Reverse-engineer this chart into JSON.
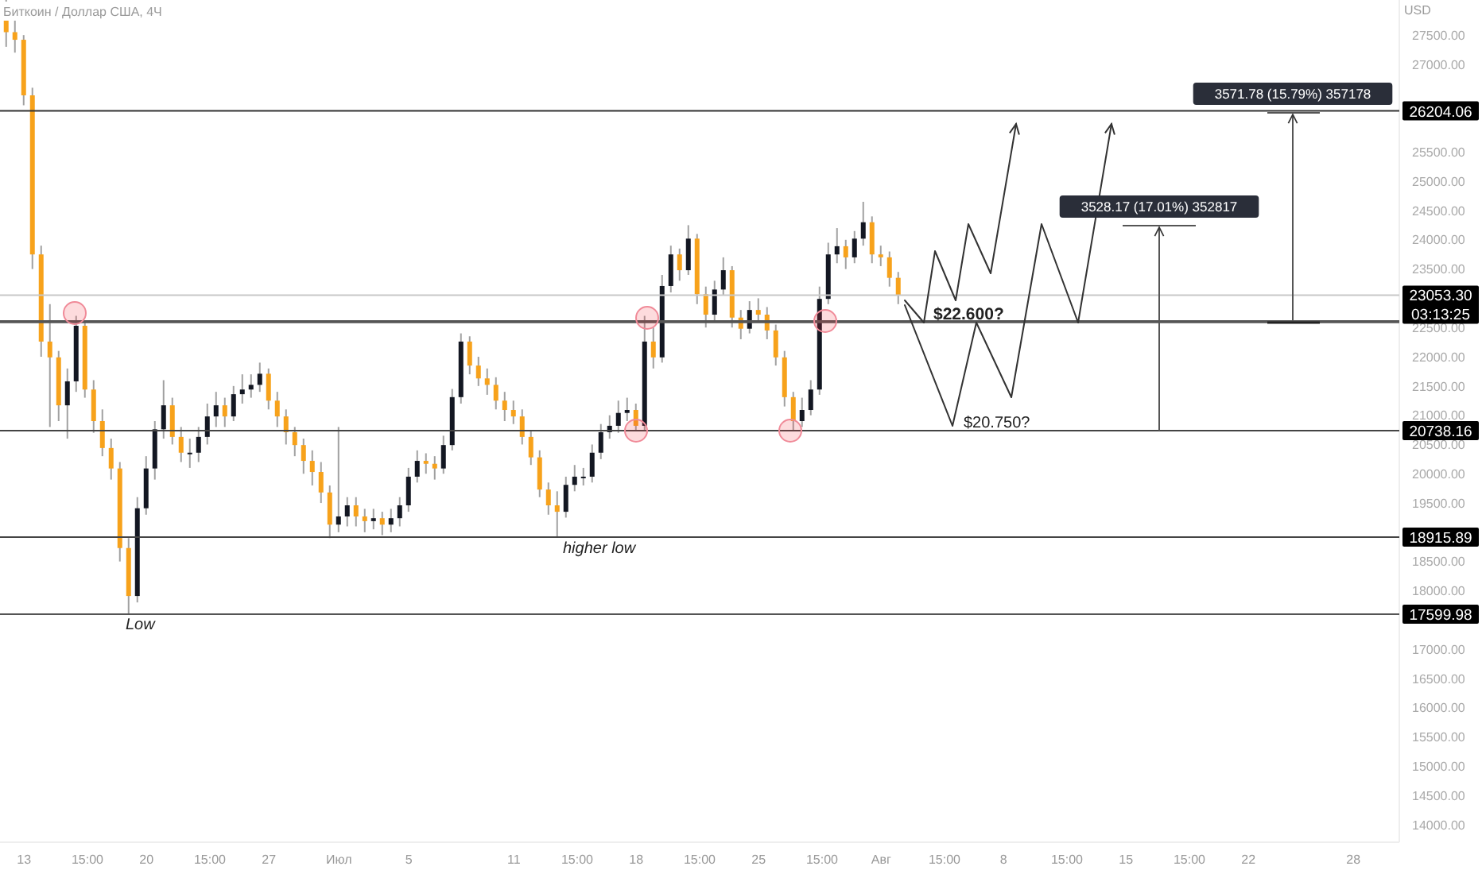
{
  "chart_data": {
    "type": "candlestick",
    "title": "Биткоин / Доллар США, 4Ч",
    "ylabel": "USD",
    "x": [
      "--06-12T00:00",
      "--06-12T12:00",
      "--06-13T00:00",
      "--06-13T12:00",
      "--06-14T00:00",
      "--06-14T12:00",
      "--06-15T00:00",
      "--06-15T12:00",
      "--06-16T00:00",
      "--06-16T12:00",
      "--06-17T00:00",
      "--06-17T12:00",
      "--06-18T00:00",
      "--06-18T12:00",
      "--06-19T00:00",
      "--06-19T12:00",
      "--06-20T00:00",
      "--06-20T12:00",
      "--06-21T00:00",
      "--06-21T12:00",
      "--06-22T00:00",
      "--06-22T12:00",
      "--06-23T00:00",
      "--06-23T12:00",
      "--06-24T00:00",
      "--06-24T12:00",
      "--06-25T00:00",
      "--06-25T12:00",
      "--06-26T00:00",
      "--06-26T12:00",
      "--06-27T00:00",
      "--06-27T12:00",
      "--06-28T00:00",
      "--06-28T12:00",
      "--06-29T00:00",
      "--06-29T12:00",
      "--06-30T00:00",
      "--06-30T12:00",
      "--07-01T00:00",
      "--07-01T12:00",
      "--07-02T00:00",
      "--07-02T12:00",
      "--07-03T00:00",
      "--07-03T12:00",
      "--07-04T00:00",
      "--07-04T12:00",
      "--07-05T00:00",
      "--07-05T12:00",
      "--07-06T00:00",
      "--07-06T12:00",
      "--07-07T00:00",
      "--07-07T12:00",
      "--07-08T00:00",
      "--07-08T12:00",
      "--07-09T00:00",
      "--07-09T12:00",
      "--07-10T00:00",
      "--07-10T12:00",
      "--07-11T00:00",
      "--07-11T12:00",
      "--07-12T00:00",
      "--07-12T12:00",
      "--07-13T00:00",
      "--07-13T12:00",
      "--07-14T00:00",
      "--07-14T12:00",
      "--07-15T00:00",
      "--07-15T12:00",
      "--07-16T00:00",
      "--07-16T12:00",
      "--07-17T00:00",
      "--07-17T12:00",
      "--07-18T00:00",
      "--07-18T12:00",
      "--07-19T00:00",
      "--07-19T12:00",
      "--07-20T00:00",
      "--07-20T12:00",
      "--07-21T00:00",
      "--07-21T12:00",
      "--07-22T00:00",
      "--07-22T12:00",
      "--07-23T00:00",
      "--07-23T12:00",
      "--07-24T00:00",
      "--07-24T12:00",
      "--07-25T00:00",
      "--07-25T12:00",
      "--07-26T00:00",
      "--07-26T12:00",
      "--07-27T00:00",
      "--07-27T12:00",
      "--07-28T00:00",
      "--07-28T12:00",
      "--07-29T00:00",
      "--07-29T12:00",
      "--07-30T00:00",
      "--07-30T12:00",
      "--07-31T00:00",
      "--07-31T12:00",
      "--08-01T00:00",
      "--08-01T12:00",
      "--08-02T00:00"
    ],
    "ohlc": [
      [
        27800,
        28100,
        27300,
        27550
      ],
      [
        27550,
        27800,
        27200,
        27420
      ],
      [
        27420,
        27500,
        26300,
        26470
      ],
      [
        26470,
        26600,
        23500,
        23750
      ],
      [
        23750,
        23900,
        22000,
        22260
      ],
      [
        22260,
        22900,
        20800,
        21990
      ],
      [
        21990,
        22100,
        20900,
        21170
      ],
      [
        21170,
        21800,
        20600,
        21580
      ],
      [
        21580,
        22700,
        21400,
        22530
      ],
      [
        22530,
        22600,
        21300,
        21440
      ],
      [
        21440,
        21600,
        20700,
        20900
      ],
      [
        20900,
        21100,
        20300,
        20440
      ],
      [
        20440,
        20600,
        19900,
        20090
      ],
      [
        20090,
        20200,
        18500,
        18730
      ],
      [
        18730,
        18900,
        17600,
        17910
      ],
      [
        17910,
        19600,
        17800,
        19410
      ],
      [
        19410,
        20300,
        19300,
        20090
      ],
      [
        20090,
        20900,
        19900,
        20760
      ],
      [
        20760,
        21600,
        20600,
        21170
      ],
      [
        21170,
        21300,
        20500,
        20630
      ],
      [
        20630,
        20800,
        20200,
        20360
      ],
      [
        20360,
        20600,
        20100,
        20360
      ],
      [
        20360,
        20800,
        20200,
        20630
      ],
      [
        20630,
        21200,
        20500,
        20980
      ],
      [
        20980,
        21400,
        20800,
        21170
      ],
      [
        21170,
        21300,
        20800,
        20980
      ],
      [
        20980,
        21500,
        20900,
        21360
      ],
      [
        21360,
        21700,
        21200,
        21440
      ],
      [
        21440,
        21700,
        21300,
        21520
      ],
      [
        21520,
        21900,
        21400,
        21710
      ],
      [
        21710,
        21800,
        21100,
        21250
      ],
      [
        21250,
        21400,
        20800,
        20980
      ],
      [
        20980,
        21100,
        20500,
        20710
      ],
      [
        20710,
        20800,
        20300,
        20490
      ],
      [
        20490,
        20600,
        20000,
        20220
      ],
      [
        20220,
        20400,
        19800,
        20030
      ],
      [
        20030,
        20200,
        19500,
        19680
      ],
      [
        19680,
        19800,
        18900,
        19130
      ],
      [
        19130,
        20800,
        19000,
        19270
      ],
      [
        19270,
        19600,
        19100,
        19460
      ],
      [
        19460,
        19600,
        19100,
        19270
      ],
      [
        19270,
        19400,
        19000,
        19190
      ],
      [
        19190,
        19400,
        19050,
        19240
      ],
      [
        19240,
        19350,
        18950,
        19130
      ],
      [
        19130,
        19400,
        19000,
        19240
      ],
      [
        19240,
        19600,
        19100,
        19460
      ],
      [
        19460,
        20100,
        19350,
        19950
      ],
      [
        19950,
        20400,
        19850,
        20220
      ],
      [
        20220,
        20350,
        20000,
        20170
      ],
      [
        20170,
        20300,
        19900,
        20090
      ],
      [
        20090,
        20650,
        20000,
        20490
      ],
      [
        20490,
        21450,
        20400,
        21310
      ],
      [
        21310,
        22400,
        21200,
        22260
      ],
      [
        22260,
        22350,
        21700,
        21850
      ],
      [
        21850,
        22000,
        21500,
        21630
      ],
      [
        21630,
        21800,
        21350,
        21520
      ],
      [
        21520,
        21650,
        21100,
        21250
      ],
      [
        21250,
        21400,
        20900,
        21090
      ],
      [
        21090,
        21250,
        20850,
        20980
      ],
      [
        20980,
        21100,
        20500,
        20630
      ],
      [
        20630,
        20750,
        20150,
        20280
      ],
      [
        20280,
        20400,
        19600,
        19730
      ],
      [
        19730,
        19850,
        19300,
        19460
      ],
      [
        19460,
        19700,
        18920,
        19350
      ],
      [
        19350,
        19950,
        19250,
        19810
      ],
      [
        19810,
        20150,
        19700,
        19950
      ],
      [
        19950,
        20100,
        19800,
        19950
      ],
      [
        19950,
        20500,
        19850,
        20360
      ],
      [
        20360,
        20850,
        20250,
        20710
      ],
      [
        20710,
        21000,
        20600,
        20820
      ],
      [
        20820,
        21250,
        20700,
        21040
      ],
      [
        21040,
        21300,
        20900,
        21090
      ],
      [
        21090,
        21200,
        20740,
        20820
      ],
      [
        20820,
        22700,
        20750,
        22260
      ],
      [
        22260,
        22500,
        21800,
        21990
      ],
      [
        21990,
        23400,
        21900,
        23210
      ],
      [
        23210,
        23900,
        23100,
        23750
      ],
      [
        23750,
        23850,
        23300,
        23480
      ],
      [
        23480,
        24250,
        23400,
        24020
      ],
      [
        24020,
        24100,
        22900,
        23070
      ],
      [
        23070,
        23200,
        22500,
        22720
      ],
      [
        22720,
        23300,
        22600,
        23150
      ],
      [
        23150,
        23700,
        23050,
        23480
      ],
      [
        23480,
        23550,
        22500,
        22670
      ],
      [
        22670,
        22800,
        22300,
        22480
      ],
      [
        22480,
        22950,
        22400,
        22800
      ],
      [
        22800,
        23000,
        22600,
        22720
      ],
      [
        22720,
        22850,
        22300,
        22450
      ],
      [
        22450,
        22550,
        21850,
        21990
      ],
      [
        21990,
        22100,
        21150,
        21310
      ],
      [
        21310,
        21400,
        20740,
        20900
      ],
      [
        20900,
        21300,
        20800,
        21090
      ],
      [
        21090,
        21600,
        21000,
        21440
      ],
      [
        21440,
        23200,
        21350,
        22990
      ],
      [
        22990,
        23950,
        22900,
        23750
      ],
      [
        23750,
        24200,
        23600,
        23890
      ],
      [
        23890,
        24000,
        23500,
        23700
      ],
      [
        23700,
        24150,
        23600,
        24020
      ],
      [
        24020,
        24650,
        23900,
        24300
      ],
      [
        24300,
        24400,
        23600,
        23750
      ],
      [
        23750,
        23900,
        23550,
        23700
      ],
      [
        23700,
        23800,
        23200,
        23350
      ],
      [
        23350,
        23450,
        22900,
        23053.3
      ]
    ],
    "xlim": [
      "--06-11T15:00",
      "--08-30T15:00"
    ],
    "xticks": [
      {
        "value": "--06-13",
        "label": "13"
      },
      {
        "value": "--06-16T15:00",
        "label": "15:00"
      },
      {
        "value": "--06-20",
        "label": "20"
      },
      {
        "value": "--06-23T15:00",
        "label": "15:00"
      },
      {
        "value": "--06-27",
        "label": "27"
      },
      {
        "value": "--07-01",
        "label": "Июл"
      },
      {
        "value": "--07-05",
        "label": "5"
      },
      {
        "value": "--07-11",
        "label": "11"
      },
      {
        "value": "--07-14T15:00",
        "label": "15:00"
      },
      {
        "value": "--07-18",
        "label": "18"
      },
      {
        "value": "--07-21T15:00",
        "label": "15:00"
      },
      {
        "value": "--07-25",
        "label": "25"
      },
      {
        "value": "--07-28T15:00",
        "label": "15:00"
      },
      {
        "value": "--08-01",
        "label": "Авг"
      },
      {
        "value": "--08-04T15:00",
        "label": "15:00"
      },
      {
        "value": "--08-08",
        "label": "8"
      },
      {
        "value": "--08-11T15:00",
        "label": "15:00"
      },
      {
        "value": "--08-15",
        "label": "15"
      },
      {
        "value": "--08-18T15:00",
        "label": "15:00"
      },
      {
        "value": "--08-22",
        "label": "22"
      },
      {
        "value": "--08-28",
        "label": "28"
      }
    ],
    "ylim": [
      13700,
      28100
    ],
    "yticks": [
      {
        "value": 14000,
        "label": "14000.00"
      },
      {
        "value": 14500,
        "label": "14500.00"
      },
      {
        "value": 15000,
        "label": "15000.00"
      },
      {
        "value": 15500,
        "label": "15500.00"
      },
      {
        "value": 16000,
        "label": "16000.00"
      },
      {
        "value": 16500,
        "label": "16500.00"
      },
      {
        "value": 17000,
        "label": "17000.00"
      },
      {
        "value": 18000,
        "label": "18000.00"
      },
      {
        "value": 18500,
        "label": "18500.00"
      },
      {
        "value": 19500,
        "label": "19500.00"
      },
      {
        "value": 20000,
        "label": "20000.00"
      },
      {
        "value": 20500,
        "label": "20500.00"
      },
      {
        "value": 21000,
        "label": "21000.00"
      },
      {
        "value": 21500,
        "label": "21500.00"
      },
      {
        "value": 22000,
        "label": "22000.00"
      },
      {
        "value": 22500,
        "label": "22500.00"
      },
      {
        "value": 23500,
        "label": "23500.00"
      },
      {
        "value": 24000,
        "label": "24000.00"
      },
      {
        "value": 24500,
        "label": "24500.00"
      },
      {
        "value": 25000,
        "label": "25000.00"
      },
      {
        "value": 25500,
        "label": "25500.00"
      },
      {
        "value": 27000,
        "label": "27000.00"
      },
      {
        "value": 27500,
        "label": "27500.00"
      }
    ],
    "ref_lines": [
      {
        "axis": "y",
        "value": 26204.06,
        "label": "26204.06",
        "color": "#333333"
      },
      {
        "axis": "y",
        "value": 23053.3,
        "label": "23053.30\n03:13:25",
        "color": "#c8c8c8"
      },
      {
        "axis": "y",
        "value": 22600,
        "color": "#555555"
      },
      {
        "axis": "y",
        "value": 20738.16,
        "label": "20738.16",
        "color": "#444444"
      },
      {
        "axis": "y",
        "value": 18915.89,
        "label": "18915.89",
        "color": "#444444"
      },
      {
        "axis": "y",
        "value": 17599.98,
        "label": "17599.98",
        "color": "#555555"
      }
    ],
    "annotations": [
      "Low",
      "higher low",
      "$22.600?",
      "$20.750?",
      "3528.17 (17.01%) 352817",
      "3571.78 (15.79%) 357178"
    ]
  }
}
